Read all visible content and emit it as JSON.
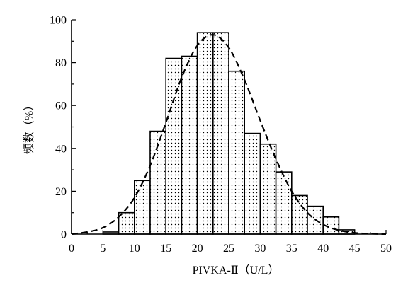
{
  "chart_data": {
    "type": "bar",
    "xlabel": "PIVKA-Ⅱ（U/L）",
    "ylabel": "频数（%）",
    "xlim": [
      0,
      50
    ],
    "ylim": [
      0,
      100
    ],
    "xticks": [
      "0",
      "5",
      "10",
      "15",
      "20",
      "25",
      "30",
      "35",
      "40",
      "45",
      "50"
    ],
    "yticks": [
      "0",
      "20",
      "40",
      "60",
      "80",
      "100"
    ],
    "bin_width": 2.5,
    "bars": [
      {
        "x": 5.0,
        "value": 1
      },
      {
        "x": 7.5,
        "value": 10
      },
      {
        "x": 10.0,
        "value": 25
      },
      {
        "x": 12.5,
        "value": 48
      },
      {
        "x": 15.0,
        "value": 82
      },
      {
        "x": 17.5,
        "value": 83
      },
      {
        "x": 20.0,
        "value": 94
      },
      {
        "x": 22.5,
        "value": 94
      },
      {
        "x": 25.0,
        "value": 76
      },
      {
        "x": 27.5,
        "value": 47
      },
      {
        "x": 30.0,
        "value": 42
      },
      {
        "x": 32.5,
        "value": 29
      },
      {
        "x": 35.0,
        "value": 18
      },
      {
        "x": 37.5,
        "value": 13
      },
      {
        "x": 40.0,
        "value": 8
      },
      {
        "x": 42.5,
        "value": 2
      }
    ],
    "curve": {
      "style": "dashed",
      "x": [
        0,
        2.5,
        5,
        7.5,
        10,
        12.5,
        15,
        17.5,
        20,
        22.5,
        25,
        27.5,
        30,
        32.5,
        35,
        37.5,
        40,
        42.5,
        45,
        47.5,
        50
      ],
      "y": [
        0,
        1,
        3,
        8,
        17,
        32,
        52,
        73,
        88,
        93,
        87,
        72,
        53,
        35,
        20,
        10,
        4.5,
        1.8,
        0.6,
        0.2,
        0
      ]
    },
    "legend": "none",
    "grid": false
  }
}
